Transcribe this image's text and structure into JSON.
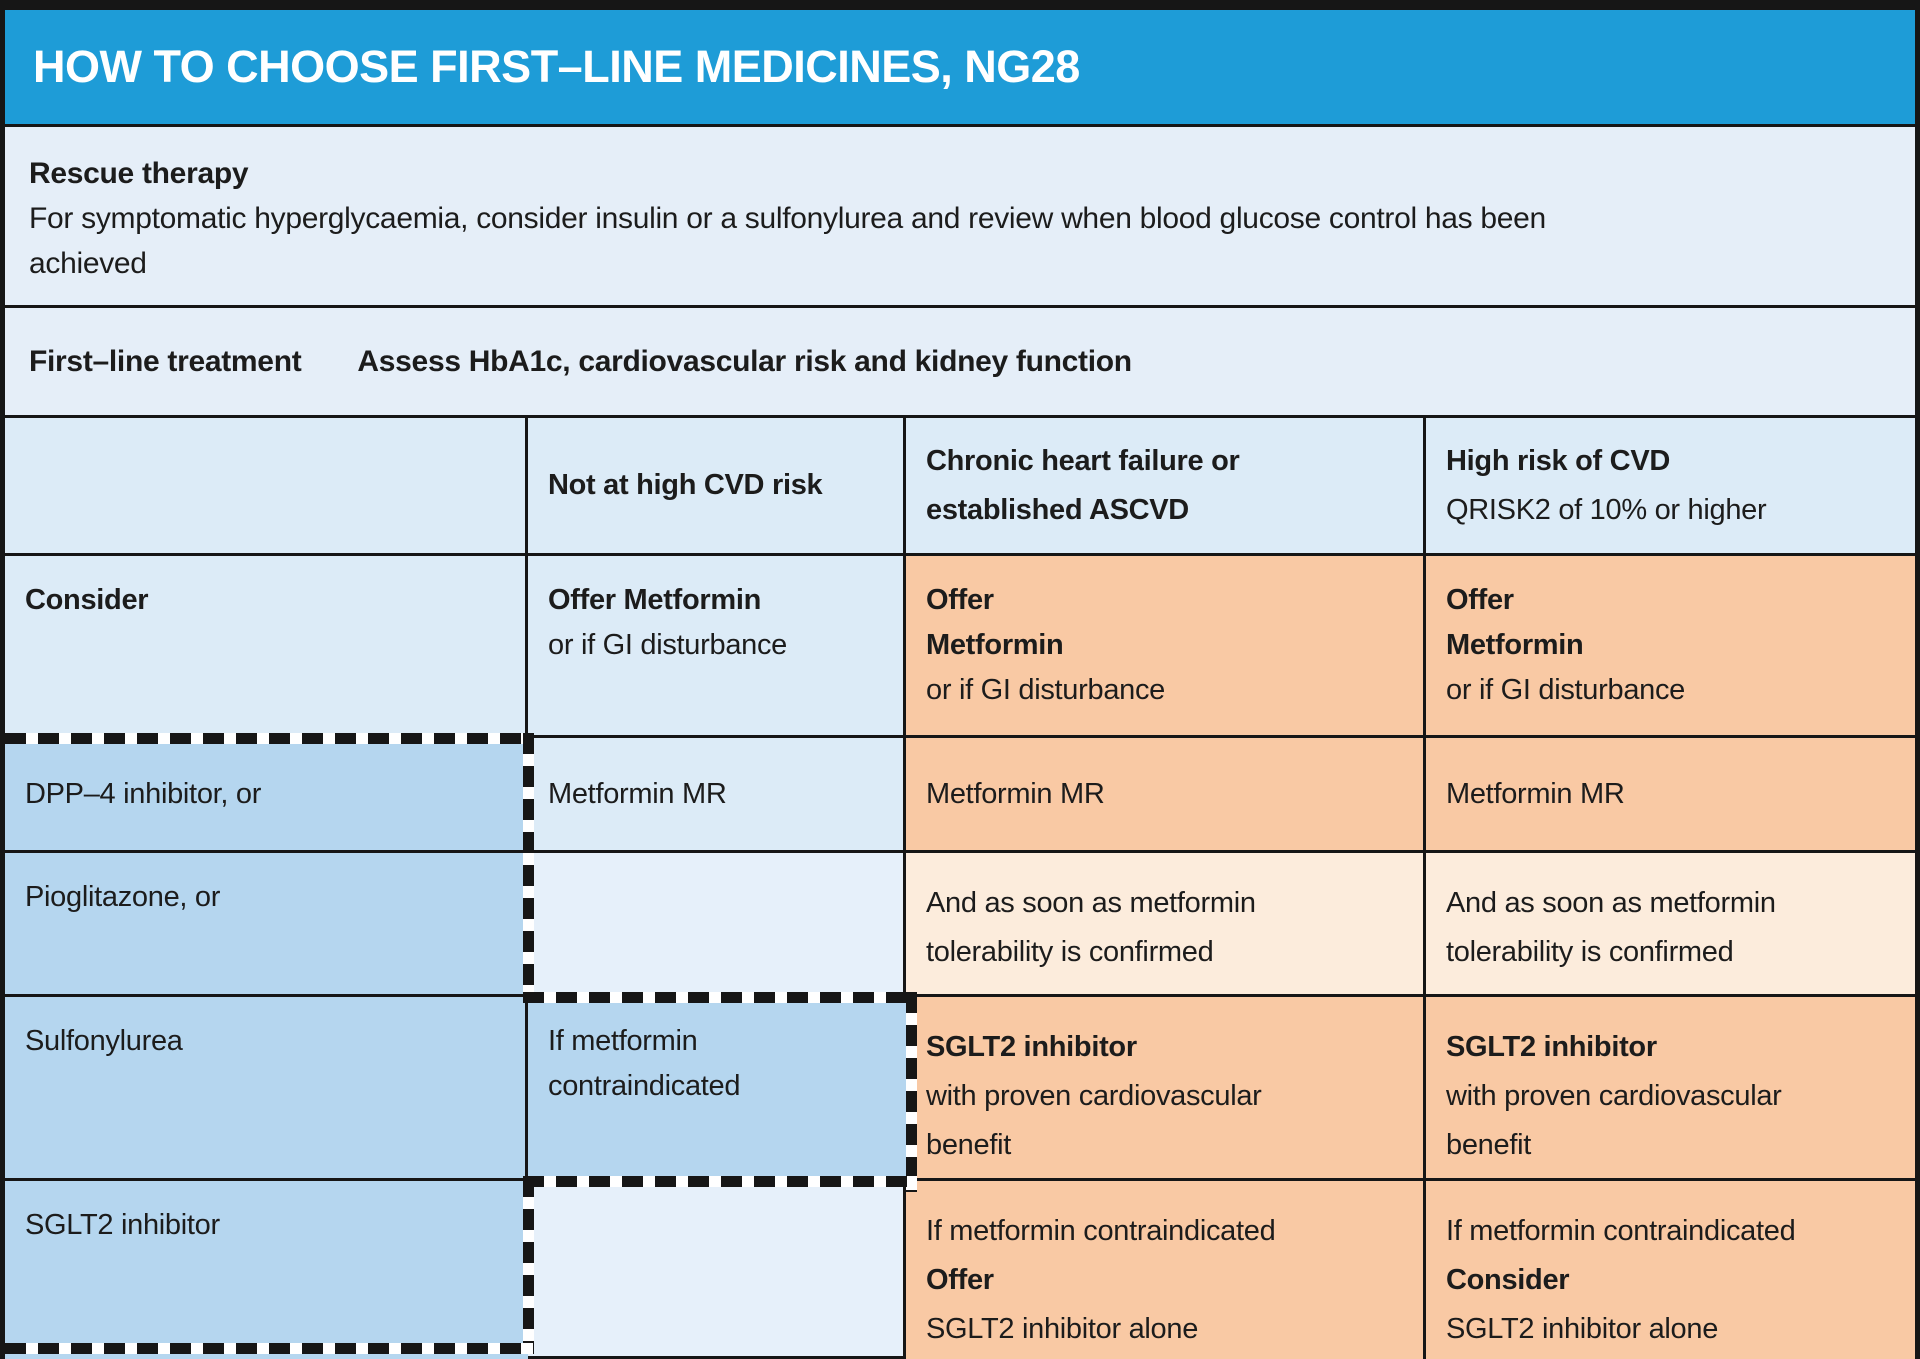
{
  "title": "HOW TO CHOOSE FIRST–LINE MEDICINES, NG28",
  "rescue": {
    "heading": "Rescue therapy",
    "body": "For symptomatic hyperglycaemia, consider insulin or a sulfonylurea and review when blood glucose control has been\nachieved"
  },
  "first_line": {
    "heading": "First–line treatment",
    "subheading": "Assess HbA1c, cardiovascular risk and kidney function"
  },
  "table": {
    "headers": {
      "not_high": "Not at high CVD risk",
      "chf": "Chronic heart failure or\nestablished ASCVD",
      "high_title": "High risk of CVD",
      "high_sub": "QRISK2 of 10% or higher"
    },
    "rows": {
      "consider": {
        "label": "Consider",
        "not_high": {
          "l1": "Offer Metformin",
          "l2": "or if GI disturbance"
        },
        "chf": {
          "l1": "Offer",
          "l2": "Metformin",
          "l3": "or if GI disturbance"
        },
        "high": {
          "l1": "Offer",
          "l2": "Metformin",
          "l3": "or if GI disturbance"
        }
      },
      "dpp4": {
        "label": "DPP–4 inhibitor, or",
        "not_high": "Metformin MR",
        "chf": "Metformin MR",
        "high": "Metformin MR"
      },
      "pio": {
        "label": "Pioglitazone, or",
        "chf": "And as soon as metformin\ntolerability is confirmed",
        "high": "And as soon as metformin\ntolerability is confirmed"
      },
      "sulf": {
        "label": "Sulfonylurea",
        "not_high": "If metformin\ncontraindicated",
        "chf": {
          "l1": "SGLT2 inhibitor",
          "l2": "with proven cardiovascular\nbenefit"
        },
        "high": {
          "l1": "SGLT2 inhibitor",
          "l2": "with proven cardiovascular\nbenefit"
        }
      },
      "sglt2": {
        "label": "SGLT2 inhibitor",
        "chf": {
          "l1": "If metformin contraindicated",
          "l2": "Offer",
          "l3": "SGLT2 inhibitor alone"
        },
        "high": {
          "l1": "If metformin contraindicated",
          "l2": "Consider",
          "l3": "SGLT2 inhibitor alone"
        }
      }
    }
  },
  "colors": {
    "title-bar": "#1e9cd7",
    "section-bg": "#e5eef8",
    "cell-light": "#dcebf7",
    "cell-pale": "#e6f0fa",
    "cell-mid": "#b5d6ef",
    "cell-orange": "#f9c9a4",
    "cell-pale-orange": "#fcecdc",
    "line": "#161616"
  }
}
